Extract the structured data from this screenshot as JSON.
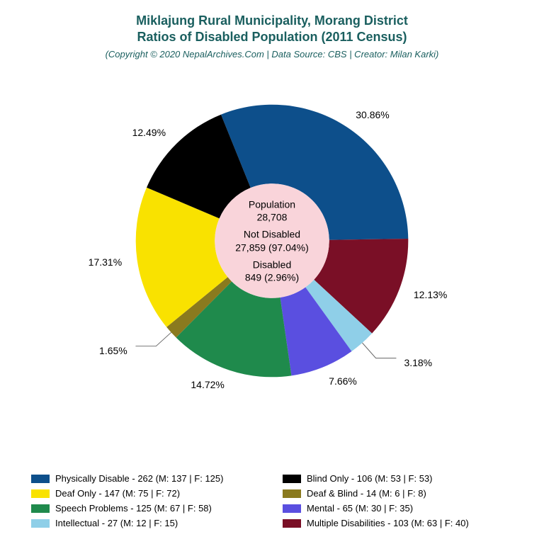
{
  "title": {
    "line1": "Miklajung Rural Municipality, Morang District",
    "line2": "Ratios of Disabled Population (2011 Census)",
    "subtitle": "(Copyright © 2020 NepalArchives.Com | Data Source: CBS | Creator: Milan Karki)",
    "color": "#1a5f5f",
    "fontsize_title": 18,
    "fontsize_subtitle": 13
  },
  "chart": {
    "type": "pie",
    "inner_radius_pct": 42,
    "outer_radius_pct": 100,
    "center_bg": "#f9d4da",
    "start_angle_deg": -112,
    "slices": [
      {
        "key": "physically",
        "pct": 30.86,
        "color": "#0d4f8b",
        "label": "30.86%"
      },
      {
        "key": "multiple",
        "pct": 12.13,
        "color": "#7a0f26",
        "label": "12.13%"
      },
      {
        "key": "intellectual",
        "pct": 3.18,
        "color": "#8fcfe8",
        "label": "3.18%"
      },
      {
        "key": "mental",
        "pct": 7.66,
        "color": "#5a4fe0",
        "label": "7.66%"
      },
      {
        "key": "speech",
        "pct": 14.72,
        "color": "#1f8a4c",
        "label": "14.72%"
      },
      {
        "key": "deafblind",
        "pct": 1.65,
        "color": "#8a7a1e",
        "label": "1.65%"
      },
      {
        "key": "deaf",
        "pct": 17.31,
        "color": "#f9e200",
        "label": "17.31%"
      },
      {
        "key": "blind",
        "pct": 12.49,
        "color": "#000000",
        "label": "12.49%"
      }
    ],
    "center": {
      "population_label": "Population",
      "population_value": "28,708",
      "notdisabled_label": "Not Disabled",
      "notdisabled_value": "27,859 (97.04%)",
      "disabled_label": "Disabled",
      "disabled_value": "849 (2.96%)"
    },
    "label_fontsize": 14
  },
  "legend": {
    "fontsize": 13,
    "items": [
      {
        "swatch": "#0d4f8b",
        "text": "Physically Disable - 262 (M: 137 | F: 125)"
      },
      {
        "swatch": "#000000",
        "text": "Blind Only - 106 (M: 53 | F: 53)"
      },
      {
        "swatch": "#f9e200",
        "text": "Deaf Only - 147 (M: 75 | F: 72)"
      },
      {
        "swatch": "#8a7a1e",
        "text": "Deaf & Blind - 14 (M: 6 | F: 8)"
      },
      {
        "swatch": "#1f8a4c",
        "text": "Speech Problems - 125 (M: 67 | F: 58)"
      },
      {
        "swatch": "#5a4fe0",
        "text": "Mental - 65 (M: 30 | F: 35)"
      },
      {
        "swatch": "#8fcfe8",
        "text": "Intellectual - 27 (M: 12 | F: 15)"
      },
      {
        "swatch": "#7a0f26",
        "text": "Multiple Disabilities - 103 (M: 63 | F: 40)"
      }
    ]
  },
  "background_color": "#ffffff"
}
